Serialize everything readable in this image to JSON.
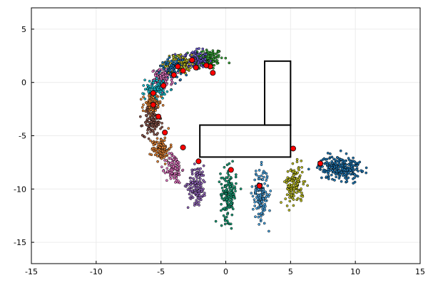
{
  "chart_data": {
    "type": "scatter",
    "title": "",
    "xlabel": "",
    "ylabel": "",
    "xlim": [
      -15,
      15
    ],
    "ylim": [
      -17,
      7
    ],
    "x_ticks": [
      -15,
      -10,
      -5,
      0,
      5,
      10,
      15
    ],
    "y_ticks": [
      -15,
      -10,
      -5,
      0,
      5
    ],
    "grid": true,
    "legend": "none",
    "colors": {
      "particles_palette": [
        "#1f77b4",
        "#e38335",
        "#3aa63a",
        "#c43d3d",
        "#9467bd",
        "#8c564b",
        "#e377c2",
        "#17becf",
        "#bcbd22",
        "#1b9e77",
        "#6a5acd",
        "#4aa3df"
      ],
      "marker": "#ff0000",
      "obstacle": "#000000",
      "grid": "#ececec"
    },
    "obstacles": [
      {
        "x": [
          3,
          5
        ],
        "y": [
          -4,
          2
        ]
      },
      {
        "x": [
          -2,
          5
        ],
        "y": [
          -7,
          -4
        ]
      }
    ],
    "estimates": [
      {
        "x": -1.0,
        "y": 0.9
      },
      {
        "x": -1.2,
        "y": 1.5
      },
      {
        "x": -1.5,
        "y": 1.6
      },
      {
        "x": -2.3,
        "y": 1.4
      },
      {
        "x": -2.6,
        "y": 2.1
      },
      {
        "x": -3.3,
        "y": 1.1
      },
      {
        "x": -3.7,
        "y": 1.5
      },
      {
        "x": -4.0,
        "y": 0.7
      },
      {
        "x": -4.8,
        "y": -0.3
      },
      {
        "x": -5.6,
        "y": -1.0
      },
      {
        "x": -5.6,
        "y": -2.1
      },
      {
        "x": -5.2,
        "y": -3.2
      },
      {
        "x": -4.7,
        "y": -4.7
      },
      {
        "x": -3.3,
        "y": -6.1
      },
      {
        "x": -2.1,
        "y": -7.4
      },
      {
        "x": 0.4,
        "y": -8.2
      },
      {
        "x": 2.6,
        "y": -9.7
      },
      {
        "x": 5.2,
        "y": -6.2
      },
      {
        "x": 7.3,
        "y": -7.6
      }
    ],
    "clusters": [
      {
        "x": -1.4,
        "y": 2.2,
        "sx": 0.6,
        "sy": 0.5,
        "n": 140,
        "color": "#3aa63a"
      },
      {
        "x": -2.6,
        "y": 2.1,
        "sx": 0.6,
        "sy": 0.45,
        "n": 120,
        "color": "#6a5acd"
      },
      {
        "x": -3.6,
        "y": 1.7,
        "sx": 0.5,
        "sy": 0.45,
        "n": 110,
        "color": "#bcbd22"
      },
      {
        "x": -4.3,
        "y": 1.2,
        "sx": 0.45,
        "sy": 0.45,
        "n": 100,
        "color": "#1f77b4"
      },
      {
        "x": -4.9,
        "y": 0.3,
        "sx": 0.4,
        "sy": 0.45,
        "n": 90,
        "color": "#e377c2"
      },
      {
        "x": -5.4,
        "y": -0.6,
        "sx": 0.4,
        "sy": 0.5,
        "n": 90,
        "color": "#17becf"
      },
      {
        "x": -5.7,
        "y": -2.2,
        "sx": 0.35,
        "sy": 0.55,
        "n": 90,
        "color": "#e38335"
      },
      {
        "x": -5.7,
        "y": -3.8,
        "sx": 0.35,
        "sy": 0.6,
        "n": 100,
        "color": "#8c564b"
      },
      {
        "x": -5.0,
        "y": -6.2,
        "sx": 0.35,
        "sy": 0.55,
        "n": 110,
        "color": "#e38335"
      },
      {
        "x": -4.0,
        "y": -8.1,
        "sx": 0.3,
        "sy": 0.7,
        "n": 110,
        "color": "#e377c2"
      },
      {
        "x": -2.2,
        "y": -9.6,
        "sx": 0.35,
        "sy": 0.9,
        "n": 130,
        "color": "#9467bd"
      },
      {
        "x": 0.2,
        "y": -10.5,
        "sx": 0.3,
        "sy": 1.2,
        "n": 150,
        "color": "#1b9e77"
      },
      {
        "x": 2.7,
        "y": -10.5,
        "sx": 0.3,
        "sy": 1.2,
        "n": 150,
        "color": "#4aa3df"
      },
      {
        "x": 5.3,
        "y": -9.6,
        "sx": 0.35,
        "sy": 0.9,
        "n": 130,
        "color": "#bcbd22"
      },
      {
        "x": 8.8,
        "y": -8.0,
        "sx": 0.8,
        "sy": 0.55,
        "n": 260,
        "color": "#1f77b4"
      }
    ]
  }
}
